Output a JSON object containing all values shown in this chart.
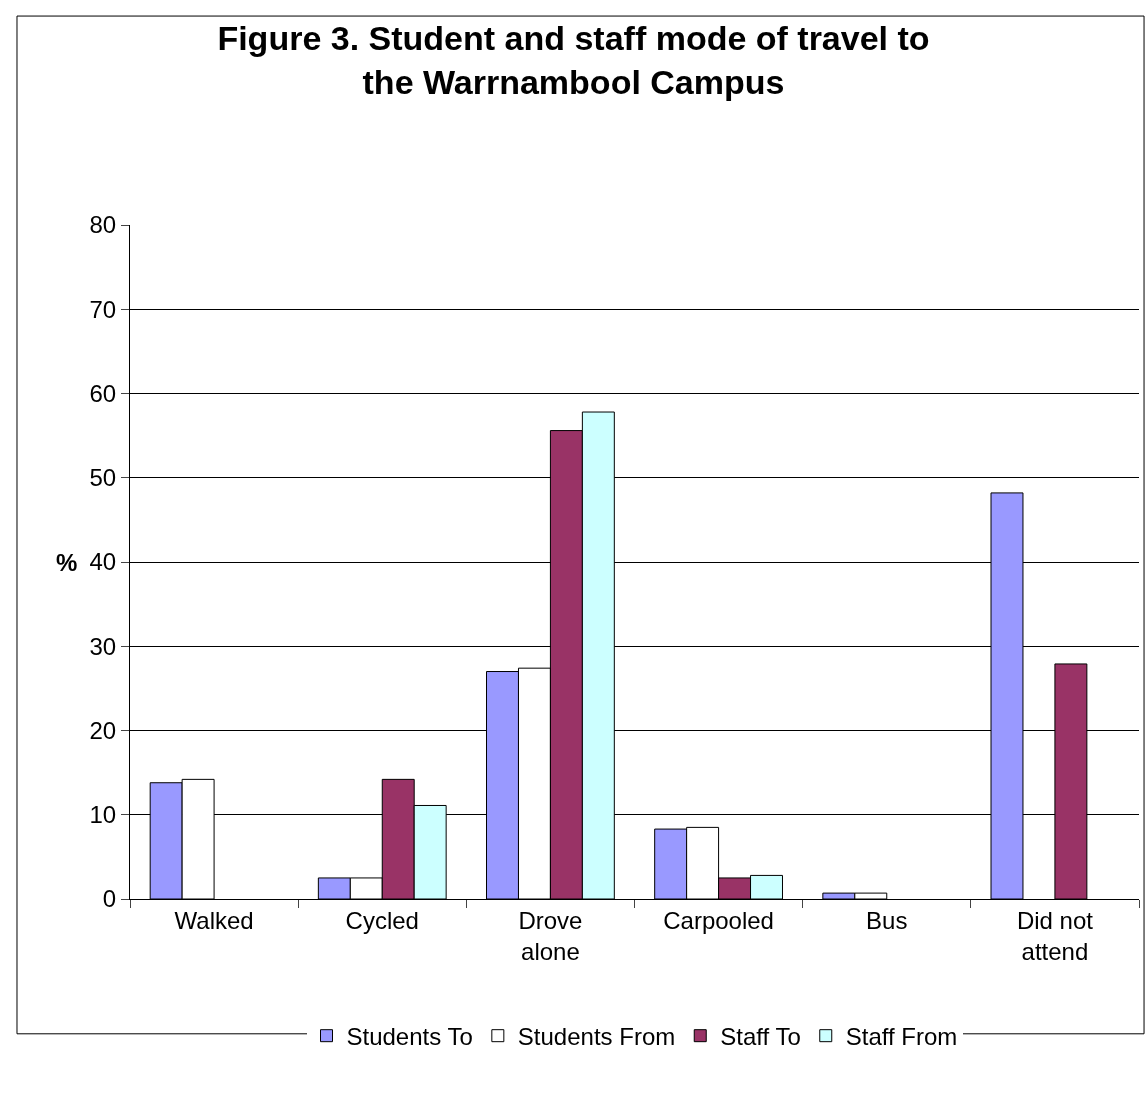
{
  "chart_data": {
    "type": "bar",
    "title": "Figure 3. Student and staff mode of travel to the Warrnambool Campus",
    "ylabel": "%",
    "categories": [
      "Walked",
      "Cycled",
      "Drove alone",
      "Carpooled",
      "Bus",
      "Did not attend"
    ],
    "series": [
      {
        "name": "Students To",
        "color": "#9999ff",
        "values": [
          13.8,
          2.5,
          27.0,
          8.3,
          0.7,
          48.2
        ]
      },
      {
        "name": "Students From",
        "color": "#ffffff",
        "values": [
          14.2,
          2.5,
          27.4,
          8.5,
          0.7,
          null
        ]
      },
      {
        "name": "Staff To",
        "color": "#993366",
        "values": [
          null,
          14.2,
          55.6,
          2.5,
          null,
          27.9
        ]
      },
      {
        "name": "Staff From",
        "color": "#ccffff",
        "values": [
          null,
          11.1,
          57.8,
          2.8,
          null,
          null
        ]
      }
    ],
    "ylim": [
      0,
      80
    ],
    "yticks": [
      0,
      10,
      20,
      30,
      40,
      50,
      60,
      70,
      80
    ],
    "grid": "y",
    "legend": "bottom"
  }
}
